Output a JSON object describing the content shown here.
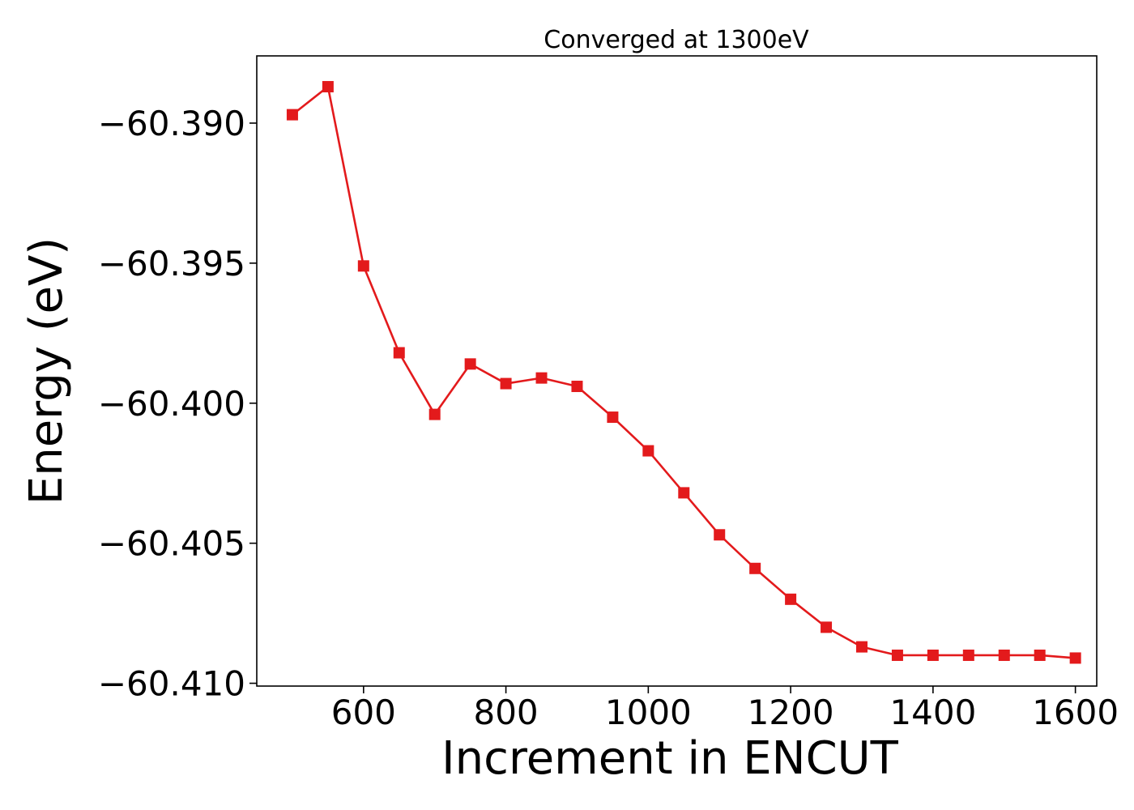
{
  "chart_data": {
    "type": "line",
    "title": "Converged at 1300eV",
    "xlabel": "Increment in ENCUT",
    "ylabel": "Energy (eV)",
    "xlim": [
      450,
      1630
    ],
    "ylim": [
      -60.4101,
      -60.3876
    ],
    "x_ticks": [
      600,
      800,
      1000,
      1200,
      1400,
      1600
    ],
    "x_tick_labels": [
      "600",
      "800",
      "1000",
      "1200",
      "1400",
      "1600"
    ],
    "y_ticks": [
      -60.39,
      -60.395,
      -60.4,
      -60.405,
      -60.41
    ],
    "y_tick_labels": [
      "−60.390",
      "−60.395",
      "−60.400",
      "−60.405",
      "−60.410"
    ],
    "grid": false,
    "series": [
      {
        "color": "#e31a1c",
        "marker": "square",
        "x": [
          500,
          550,
          600,
          650,
          700,
          750,
          800,
          850,
          900,
          950,
          1000,
          1050,
          1100,
          1150,
          1200,
          1250,
          1300,
          1350,
          1400,
          1450,
          1500,
          1550,
          1600
        ],
        "y": [
          -60.3897,
          -60.3887,
          -60.3951,
          -60.3982,
          -60.4004,
          -60.3986,
          -60.3993,
          -60.3991,
          -60.3994,
          -60.4005,
          -60.4017,
          -60.4032,
          -60.4047,
          -60.4059,
          -60.407,
          -60.408,
          -60.4087,
          -60.409,
          -60.409,
          -60.409,
          -60.409,
          -60.409,
          -60.4091
        ]
      }
    ]
  }
}
